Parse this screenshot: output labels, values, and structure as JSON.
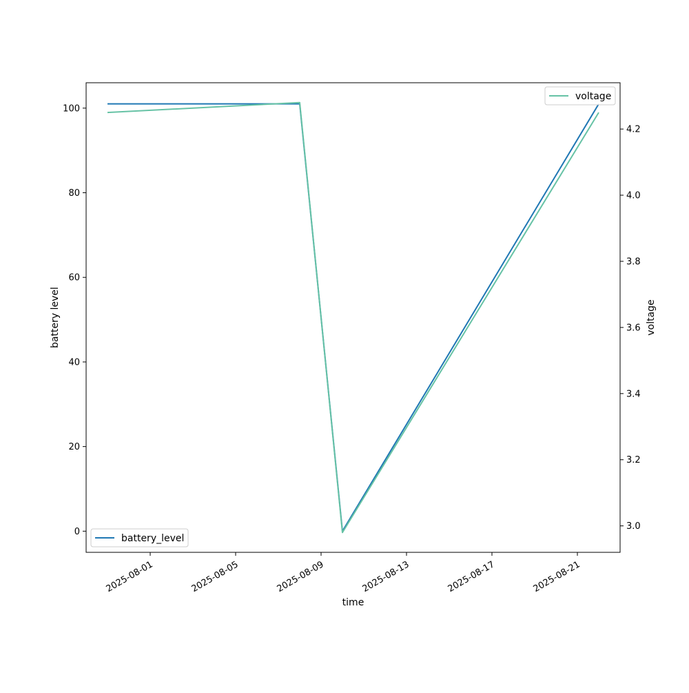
{
  "chart_data": {
    "type": "line",
    "xlabel": "time",
    "ylabel": "battery level",
    "y2label": "voltage",
    "xticks": [
      "2025-08-01",
      "2025-08-05",
      "2025-08-09",
      "2025-08-13",
      "2025-08-17",
      "2025-08-21"
    ],
    "xlim": [
      "2025-07-29",
      "2025-08-23"
    ],
    "ylim": [
      -5,
      106
    ],
    "y2lim": [
      2.92,
      4.34
    ],
    "yticks": [
      0,
      20,
      40,
      60,
      80,
      100
    ],
    "y2ticks": [
      3.0,
      3.2,
      3.4,
      3.6,
      3.8,
      4.0,
      4.2
    ],
    "grid": false,
    "series": [
      {
        "name": "battery_level",
        "axis": "left",
        "color": "#1f77b4",
        "legend_position": "lower-left",
        "x": [
          "2025-07-30",
          "2025-08-08",
          "2025-08-10",
          "2025-08-22"
        ],
        "values": [
          101,
          101,
          0,
          101
        ]
      },
      {
        "name": "voltage",
        "axis": "right",
        "color": "#66c2a5",
        "legend_position": "upper-right",
        "x": [
          "2025-07-30",
          "2025-08-08",
          "2025-08-10",
          "2025-08-22"
        ],
        "values": [
          4.25,
          4.28,
          2.98,
          4.25
        ]
      }
    ]
  }
}
